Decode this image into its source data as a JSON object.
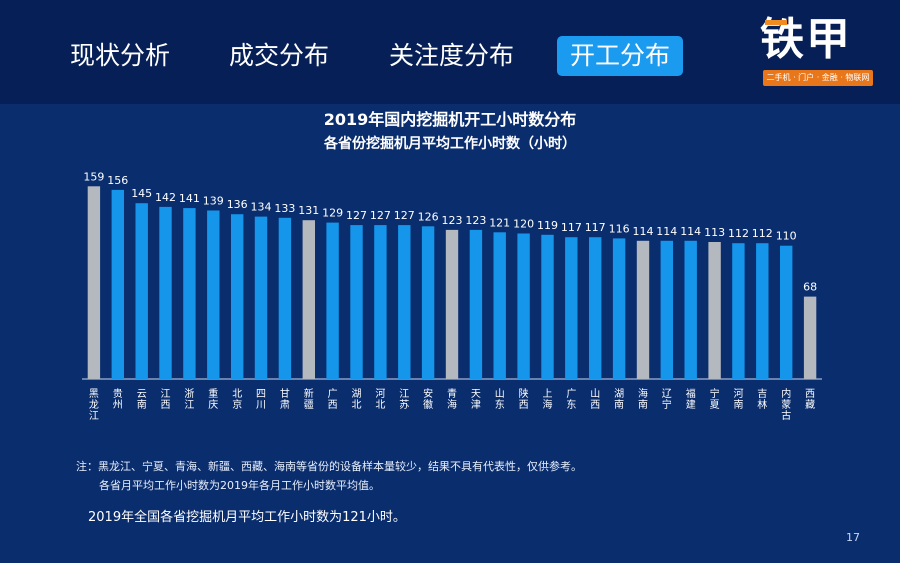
{
  "header": {
    "tabs": [
      {
        "label": "现状分析",
        "active": false
      },
      {
        "label": "成交分布",
        "active": false
      },
      {
        "label": "关注度分布",
        "active": false
      },
      {
        "label": "开工分布",
        "active": true
      }
    ],
    "logo": {
      "text": "铁甲",
      "tagline": "二手机 · 门户 · 金融 · 物联网"
    }
  },
  "colors": {
    "background": "#0a2d6e",
    "header": "#061f56",
    "active_tab": "#1b9bf0",
    "bar_blue": "#1596ea",
    "bar_gray": "#b4b8bf",
    "logo_orange": "#e8771b"
  },
  "chart_data": {
    "type": "bar",
    "title": "2019年国内挖掘机开工小时数分布",
    "subtitle": "各省份挖掘机月平均工作小时数（小时）",
    "categories": [
      "黑龙江",
      "贵州",
      "云南",
      "江西",
      "浙江",
      "重庆",
      "北京",
      "四川",
      "甘肃",
      "新疆",
      "广西",
      "湖北",
      "河北",
      "江苏",
      "安徽",
      "青海",
      "天津",
      "山东",
      "陕西",
      "上海",
      "广东",
      "山西",
      "湖南",
      "海南",
      "辽宁",
      "福建",
      "宁夏",
      "河南",
      "吉林",
      "内蒙古",
      "西藏"
    ],
    "values": [
      159,
      156,
      145,
      142,
      141,
      139,
      136,
      134,
      133,
      131,
      129,
      127,
      127,
      127,
      126,
      123,
      123,
      121,
      120,
      119,
      117,
      117,
      116,
      114,
      114,
      114,
      113,
      112,
      112,
      110,
      68
    ],
    "highlight_gray": [
      "黑龙江",
      "新疆",
      "青海",
      "海南",
      "宁夏",
      "西藏"
    ],
    "ylim": [
      0,
      165
    ],
    "grid": false,
    "legend": "none"
  },
  "notes": {
    "line1": "注：黑龙江、宁夏、青海、新疆、西藏、海南等省份的设备样本量较少，结果不具有代表性，仅供参考。",
    "line2": "各省月平均工作小时数为2019年各月工作小时数平均值。"
  },
  "summary": "2019年全国各省挖掘机月平均工作小时数为121小时。",
  "page_number": "17"
}
